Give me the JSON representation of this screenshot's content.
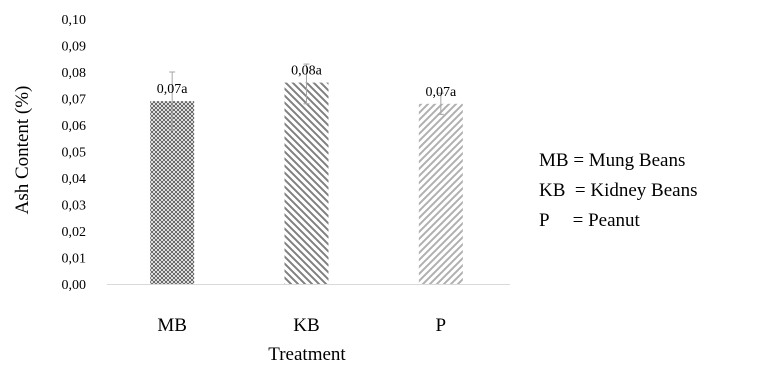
{
  "chart_data": {
    "type": "bar",
    "categories": [
      "MB",
      "KB",
      "P"
    ],
    "values": [
      0.069,
      0.076,
      0.068
    ],
    "error_low": [
      0.058,
      0.068,
      0.064
    ],
    "error_high": [
      0.08,
      0.083,
      0.072
    ],
    "data_labels": [
      "0,07a",
      "0,08a",
      "0,07a"
    ],
    "ylim": [
      0,
      0.1
    ],
    "yticks": [
      "0,00",
      "0,01",
      "0,02",
      "0,03",
      "0,04",
      "0,05",
      "0,06",
      "0,07",
      "0,08",
      "0,09",
      "0,10"
    ],
    "xlabel": "Treatment",
    "ylabel": "Ash Content (%)",
    "title": "",
    "grid": false,
    "bar_patterns": [
      "crosshatch",
      "diagonal-dense",
      "diagonal-light"
    ],
    "colors": {
      "MB": "#4a4a4a",
      "KB": "#808080",
      "P": "#b0b0b0",
      "axis": "#d9d9d9",
      "error_bar": "#a6a6a6"
    }
  },
  "legend": {
    "lines": [
      "MB = Mung Beans",
      "KB  = Kidney Beans",
      "P     = Peanut"
    ]
  }
}
